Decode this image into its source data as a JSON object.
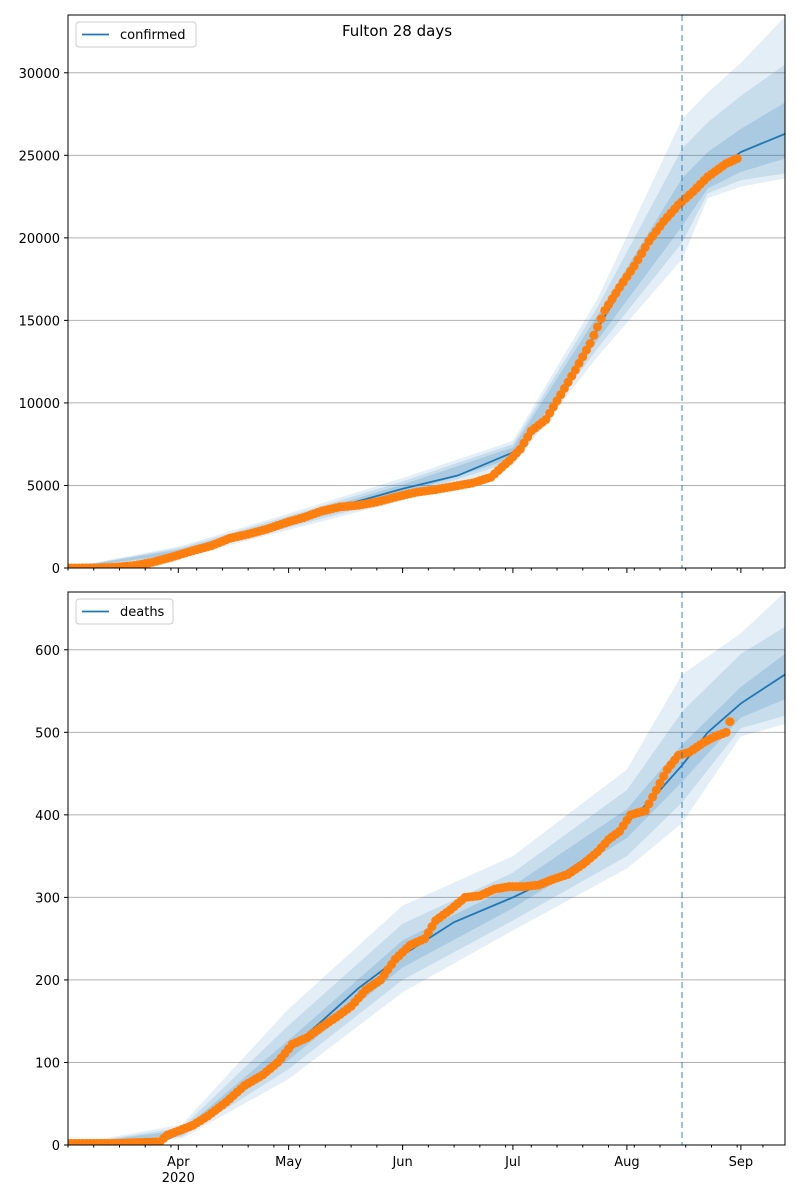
{
  "title": "Fulton 28 days",
  "chart_data": [
    {
      "type": "line",
      "legend": {
        "label": "confirmed",
        "placement": "top-left"
      },
      "xlim": [
        "2020-03-02",
        "2020-09-13"
      ],
      "ylim": [
        0,
        33500
      ],
      "yticks": [
        0,
        5000,
        10000,
        15000,
        20000,
        25000,
        30000
      ],
      "grid": "horizontal",
      "forecast_start": "2020-08-16",
      "colors": {
        "line": "#1f77b4",
        "observed": "#ff7f0e",
        "band": "#1f77b4"
      },
      "fit": [
        [
          "2020-03-02",
          0
        ],
        [
          "2020-03-12",
          20
        ],
        [
          "2020-03-19",
          150
        ],
        [
          "2020-03-26",
          450
        ],
        [
          "2020-04-02",
          1000
        ],
        [
          "2020-04-16",
          1800
        ],
        [
          "2020-05-01",
          2800
        ],
        [
          "2020-05-16",
          3800
        ],
        [
          "2020-06-01",
          4800
        ],
        [
          "2020-06-16",
          5600
        ],
        [
          "2020-07-01",
          7000
        ],
        [
          "2020-07-08",
          8500
        ],
        [
          "2020-07-16",
          11000
        ],
        [
          "2020-07-24",
          14500
        ],
        [
          "2020-08-01",
          17500
        ],
        [
          "2020-08-08",
          20000
        ],
        [
          "2020-08-16",
          22000
        ],
        [
          "2020-08-23",
          23800
        ],
        [
          "2020-09-01",
          25200
        ],
        [
          "2020-09-13",
          26300
        ]
      ],
      "observed": [
        [
          "2020-03-02",
          0
        ],
        [
          "2020-03-10",
          10
        ],
        [
          "2020-03-15",
          50
        ],
        [
          "2020-03-20",
          150
        ],
        [
          "2020-03-25",
          350
        ],
        [
          "2020-03-30",
          650
        ],
        [
          "2020-04-05",
          1050
        ],
        [
          "2020-04-10",
          1350
        ],
        [
          "2020-04-15",
          1800
        ],
        [
          "2020-04-20",
          2050
        ],
        [
          "2020-04-25",
          2350
        ],
        [
          "2020-05-01",
          2800
        ],
        [
          "2020-05-05",
          3050
        ],
        [
          "2020-05-10",
          3450
        ],
        [
          "2020-05-15",
          3700
        ],
        [
          "2020-05-20",
          3800
        ],
        [
          "2020-05-25",
          4000
        ],
        [
          "2020-05-31",
          4350
        ],
        [
          "2020-06-05",
          4600
        ],
        [
          "2020-06-10",
          4750
        ],
        [
          "2020-06-15",
          4950
        ],
        [
          "2020-06-20",
          5150
        ],
        [
          "2020-06-25",
          5500
        ],
        [
          "2020-06-30",
          6500
        ],
        [
          "2020-07-03",
          7200
        ],
        [
          "2020-07-06",
          8300
        ],
        [
          "2020-07-10",
          9000
        ],
        [
          "2020-07-14",
          10500
        ],
        [
          "2020-07-18",
          12000
        ],
        [
          "2020-07-22",
          13600
        ],
        [
          "2020-07-26",
          15600
        ],
        [
          "2020-07-30",
          17000
        ],
        [
          "2020-08-03",
          18300
        ],
        [
          "2020-08-07",
          19800
        ],
        [
          "2020-08-11",
          21000
        ],
        [
          "2020-08-15",
          22000
        ],
        [
          "2020-08-19",
          22800
        ],
        [
          "2020-08-23",
          23700
        ],
        [
          "2020-08-28",
          24500
        ],
        [
          "2020-08-31",
          24800
        ]
      ],
      "bands": [
        [
          [
            [
              "2020-03-02",
              0
            ],
            0,
            0
          ],
          [
            [
              "2020-04-02",
              1000
            ],
            650,
            1350
          ],
          [
            [
              "2020-05-01",
              2800
            ],
            2300,
            3300
          ],
          [
            [
              "2020-06-01",
              4800
            ],
            4100,
            5450
          ],
          [
            [
              "2020-07-01",
              7000
            ],
            6250,
            7700
          ],
          [
            [
              "2020-07-24",
              14500
            ],
            12800,
            16300
          ],
          [
            [
              "2020-08-16",
              22000
            ],
            18700,
            27200
          ],
          [
            [
              "2020-08-23",
              23800
            ],
            22400,
            28800
          ],
          [
            [
              "2020-09-01",
              25200
            ],
            23100,
            30600
          ],
          [
            [
              "2020-09-13",
              26300
            ],
            23600,
            33400
          ]
        ],
        [
          [
            [
              "2020-03-02",
              0
            ],
            0,
            0
          ],
          [
            [
              "2020-04-02",
              1000
            ],
            750,
            1250
          ],
          [
            [
              "2020-05-01",
              2800
            ],
            2450,
            3150
          ],
          [
            [
              "2020-06-01",
              4800
            ],
            4300,
            5250
          ],
          [
            [
              "2020-07-01",
              7000
            ],
            6450,
            7500
          ],
          [
            [
              "2020-07-24",
              14500
            ],
            13300,
            15800
          ],
          [
            [
              "2020-08-16",
              22000
            ],
            19700,
            25400
          ],
          [
            [
              "2020-08-23",
              23800
            ],
            22700,
            27000
          ],
          [
            [
              "2020-09-01",
              25200
            ],
            23500,
            28600
          ],
          [
            [
              "2020-09-13",
              26300
            ],
            23900,
            30500
          ]
        ],
        [
          [
            [
              "2020-03-02",
              0
            ],
            0,
            0
          ],
          [
            [
              "2020-04-02",
              1000
            ],
            850,
            1150
          ],
          [
            [
              "2020-05-01",
              2800
            ],
            2600,
            3000
          ],
          [
            [
              "2020-06-01",
              4800
            ],
            4500,
            5050
          ],
          [
            [
              "2020-07-01",
              7000
            ],
            6650,
            7300
          ],
          [
            [
              "2020-07-24",
              14500
            ],
            13800,
            15300
          ],
          [
            [
              "2020-08-16",
              22000
            ],
            20700,
            23600
          ],
          [
            [
              "2020-08-23",
              23800
            ],
            23000,
            25200
          ],
          [
            [
              "2020-09-01",
              25200
            ],
            24000,
            26600
          ],
          [
            [
              "2020-09-13",
              26300
            ],
            24800,
            28200
          ]
        ]
      ]
    },
    {
      "type": "line",
      "legend": {
        "label": "deaths",
        "placement": "top-left"
      },
      "xlim": [
        "2020-03-02",
        "2020-09-13"
      ],
      "ylim": [
        0,
        670
      ],
      "yticks": [
        0,
        100,
        200,
        300,
        400,
        500,
        600
      ],
      "grid": "horizontal",
      "forecast_start": "2020-08-16",
      "colors": {
        "line": "#1f77b4",
        "observed": "#ff7f0e",
        "band": "#1f77b4"
      },
      "xticks_major": [
        {
          "date": "2020-04-01",
          "label": "Apr",
          "sublabel": "2020"
        },
        {
          "date": "2020-05-01",
          "label": "May"
        },
        {
          "date": "2020-06-01",
          "label": "Jun"
        },
        {
          "date": "2020-07-01",
          "label": "Jul"
        },
        {
          "date": "2020-08-01",
          "label": "Aug"
        },
        {
          "date": "2020-09-01",
          "label": "Sep"
        }
      ],
      "fit": [
        [
          "2020-03-02",
          0
        ],
        [
          "2020-03-20",
          1
        ],
        [
          "2020-03-28",
          5
        ],
        [
          "2020-04-02",
          15
        ],
        [
          "2020-04-10",
          40
        ],
        [
          "2020-04-20",
          75
        ],
        [
          "2020-05-01",
          115
        ],
        [
          "2020-05-10",
          150
        ],
        [
          "2020-05-20",
          190
        ],
        [
          "2020-06-01",
          230
        ],
        [
          "2020-06-15",
          270
        ],
        [
          "2020-07-01",
          300
        ],
        [
          "2020-07-15",
          330
        ],
        [
          "2020-07-25",
          360
        ],
        [
          "2020-08-01",
          390
        ],
        [
          "2020-08-08",
          420
        ],
        [
          "2020-08-16",
          460
        ],
        [
          "2020-08-23",
          500
        ],
        [
          "2020-09-01",
          535
        ],
        [
          "2020-09-13",
          570
        ]
      ],
      "observed": [
        [
          "2020-03-02",
          2
        ],
        [
          "2020-03-15",
          2
        ],
        [
          "2020-03-27",
          4
        ],
        [
          "2020-03-29",
          12
        ],
        [
          "2020-04-01",
          17
        ],
        [
          "2020-04-05",
          24
        ],
        [
          "2020-04-09",
          35
        ],
        [
          "2020-04-14",
          52
        ],
        [
          "2020-04-19",
          72
        ],
        [
          "2020-04-24",
          85
        ],
        [
          "2020-04-28",
          100
        ],
        [
          "2020-05-02",
          122
        ],
        [
          "2020-05-06",
          130
        ],
        [
          "2020-05-10",
          143
        ],
        [
          "2020-05-14",
          155
        ],
        [
          "2020-05-18",
          168
        ],
        [
          "2020-05-22",
          188
        ],
        [
          "2020-05-26",
          200
        ],
        [
          "2020-05-30",
          225
        ],
        [
          "2020-06-03",
          242
        ],
        [
          "2020-06-07",
          250
        ],
        [
          "2020-06-10",
          272
        ],
        [
          "2020-06-14",
          285
        ],
        [
          "2020-06-18",
          300
        ],
        [
          "2020-06-22",
          302
        ],
        [
          "2020-06-26",
          310
        ],
        [
          "2020-06-30",
          313
        ],
        [
          "2020-07-04",
          313
        ],
        [
          "2020-07-08",
          315
        ],
        [
          "2020-07-12",
          322
        ],
        [
          "2020-07-16",
          328
        ],
        [
          "2020-07-20",
          340
        ],
        [
          "2020-07-24",
          355
        ],
        [
          "2020-07-27",
          370
        ],
        [
          "2020-07-30",
          380
        ],
        [
          "2020-08-02",
          400
        ],
        [
          "2020-08-06",
          405
        ],
        [
          "2020-08-09",
          430
        ],
        [
          "2020-08-12",
          455
        ],
        [
          "2020-08-15",
          472
        ],
        [
          "2020-08-18",
          476
        ],
        [
          "2020-08-22",
          488
        ],
        [
          "2020-08-25",
          495
        ],
        [
          "2020-08-28",
          500
        ],
        [
          "2020-08-29",
          513
        ]
      ],
      "bands": [
        [
          [
            [
              "2020-03-02",
              0
            ],
            0,
            0
          ],
          [
            [
              "2020-04-02",
              15
            ],
            8,
            25
          ],
          [
            [
              "2020-05-01",
              115
            ],
            80,
            165
          ],
          [
            [
              "2020-06-01",
              230
            ],
            185,
            290
          ],
          [
            [
              "2020-07-01",
              300
            ],
            260,
            350
          ],
          [
            [
              "2020-08-01",
              390
            ],
            335,
            455
          ],
          [
            [
              "2020-08-16",
              460
            ],
            390,
            570
          ],
          [
            [
              "2020-09-01",
              535
            ],
            495,
            620
          ],
          [
            [
              "2020-09-13",
              570
            ],
            510,
            670
          ]
        ],
        [
          [
            [
              "2020-03-02",
              0
            ],
            0,
            0
          ],
          [
            [
              "2020-04-02",
              15
            ],
            10,
            21
          ],
          [
            [
              "2020-05-01",
              115
            ],
            92,
            145
          ],
          [
            [
              "2020-06-01",
              230
            ],
            200,
            268
          ],
          [
            [
              "2020-07-01",
              300
            ],
            272,
            330
          ],
          [
            [
              "2020-08-01",
              390
            ],
            350,
            430
          ],
          [
            [
              "2020-08-16",
              460
            ],
            415,
            525
          ],
          [
            [
              "2020-09-01",
              535
            ],
            505,
            595
          ],
          [
            [
              "2020-09-13",
              570
            ],
            520,
            628
          ]
        ],
        [
          [
            [
              "2020-03-02",
              0
            ],
            0,
            0
          ],
          [
            [
              "2020-04-02",
              15
            ],
            12,
            18
          ],
          [
            [
              "2020-05-01",
              115
            ],
            103,
            127
          ],
          [
            [
              "2020-06-01",
              230
            ],
            215,
            248
          ],
          [
            [
              "2020-07-01",
              300
            ],
            287,
            314
          ],
          [
            [
              "2020-08-01",
              390
            ],
            372,
            407
          ],
          [
            [
              "2020-08-16",
              460
            ],
            440,
            485
          ],
          [
            [
              "2020-09-01",
              535
            ],
            518,
            555
          ],
          [
            [
              "2020-09-13",
              570
            ],
            540,
            595
          ]
        ]
      ]
    }
  ]
}
